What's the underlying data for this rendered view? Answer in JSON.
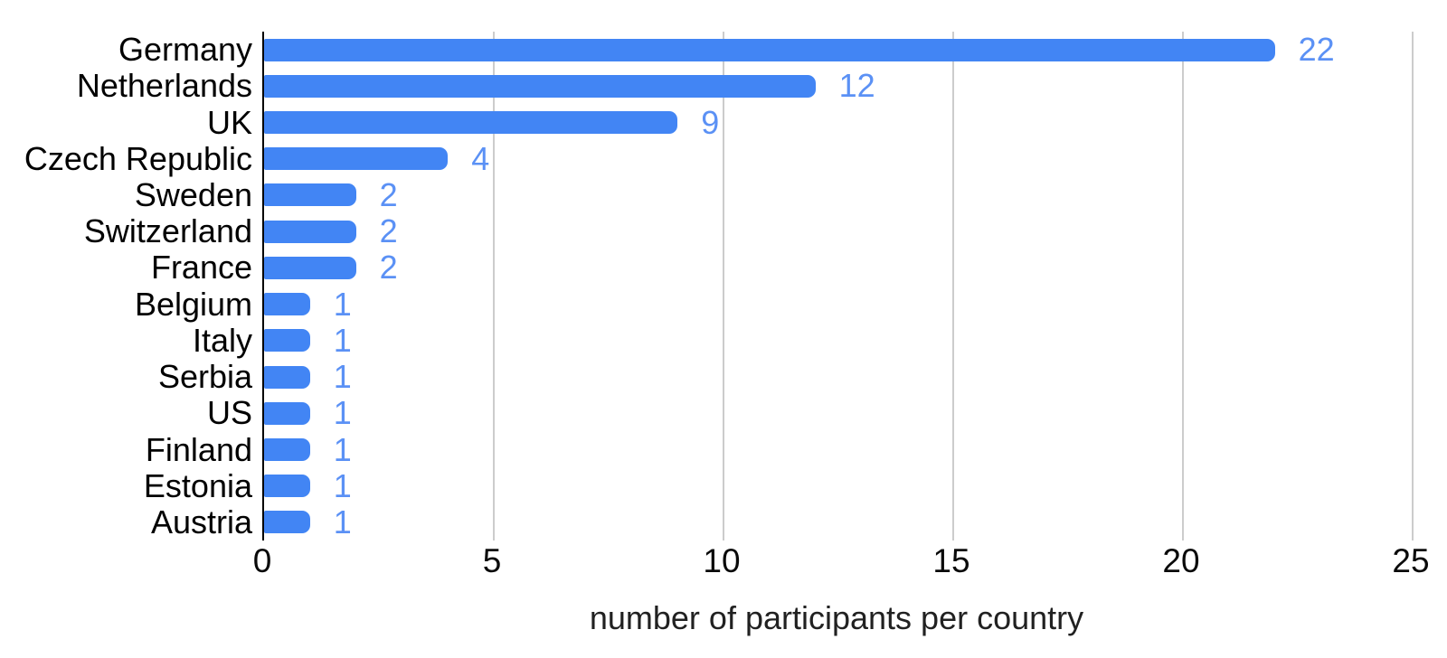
{
  "chart_data": {
    "type": "bar",
    "orientation": "horizontal",
    "title": "",
    "xlabel": "number of participants per country",
    "ylabel": "",
    "categories": [
      "Germany",
      "Netherlands",
      "UK",
      "Czech Republic",
      "Sweden",
      "Switzerland",
      "France",
      "Belgium",
      "Italy",
      "Serbia",
      "US",
      "Finland",
      "Estonia",
      "Austria"
    ],
    "values": [
      22,
      12,
      9,
      4,
      2,
      2,
      2,
      1,
      1,
      1,
      1,
      1,
      1,
      1
    ],
    "value_labels_shown": true,
    "xlim": [
      0,
      25
    ],
    "xticks": [
      0,
      5,
      10,
      15,
      20,
      25
    ],
    "grid": true,
    "legend": false,
    "colors": {
      "bar": "#4285f4",
      "value_label": "#5b91f5",
      "grid_line": "#cccccc",
      "axis_line": "#000000",
      "tick_label": "#0a0a0a",
      "category_label": "#000000",
      "axis_title": "#212121",
      "background": "#ffffff"
    }
  }
}
